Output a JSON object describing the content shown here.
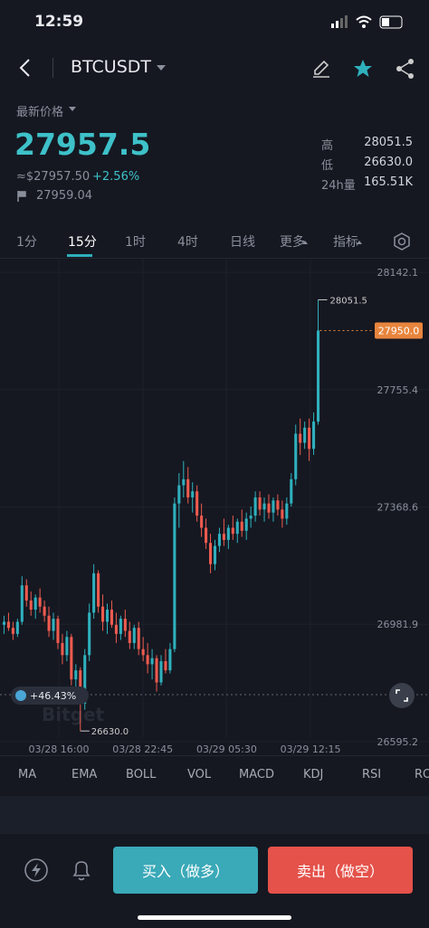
{
  "status": {
    "time": "12:59"
  },
  "header": {
    "symbol": "BTCUSDT"
  },
  "price": {
    "label": "最新价格",
    "last": "27957.5",
    "usd": "≈$27957.50",
    "change": "+2.56%",
    "mark": "27959.04"
  },
  "stats": [
    {
      "label": "高",
      "value": "28051.5"
    },
    {
      "label": "低",
      "value": "26630.0"
    },
    {
      "label": "24h量",
      "value": "165.51K"
    }
  ],
  "tabs": [
    "1分",
    "15分",
    "1时",
    "4时",
    "日线",
    "更多",
    "指标"
  ],
  "chart": {
    "type": "candlestick",
    "up_color": "#2fb0bd",
    "down_color": "#ee5b4f",
    "ylim": [
      26550,
      28190
    ],
    "yticks": [
      28142.1,
      27755.4,
      27368.6,
      26981.9,
      26595.2
    ],
    "current": {
      "value": 27950,
      "label": "27950.0"
    },
    "max_label": "28051.5",
    "min_label": "26630.0",
    "badge": "+46.43%",
    "watermark": "Bitget",
    "xlabels": [
      "03/28 16:00",
      "03/28 22:45",
      "03/29 05:30",
      "03/29 12:15"
    ],
    "candles": [
      [
        26980,
        27010,
        26950,
        26990
      ],
      [
        26990,
        27020,
        26960,
        26970
      ],
      [
        26970,
        26990,
        26930,
        26950
      ],
      [
        26950,
        27000,
        26940,
        26990
      ],
      [
        26990,
        27140,
        26980,
        27110
      ],
      [
        27110,
        27130,
        27040,
        27060
      ],
      [
        27060,
        27090,
        27010,
        27030
      ],
      [
        27030,
        27080,
        27000,
        27070
      ],
      [
        27070,
        27100,
        27020,
        27040
      ],
      [
        27040,
        27060,
        26990,
        27010
      ],
      [
        27010,
        27040,
        26940,
        26960
      ],
      [
        26960,
        27020,
        26930,
        27000
      ],
      [
        27000,
        27010,
        26900,
        26920
      ],
      [
        26920,
        26950,
        26850,
        26880
      ],
      [
        26880,
        26960,
        26860,
        26940
      ],
      [
        26940,
        26950,
        26780,
        26800
      ],
      [
        26800,
        26850,
        26760,
        26830
      ],
      [
        26830,
        26840,
        26630,
        26720
      ],
      [
        26720,
        26900,
        26700,
        26880
      ],
      [
        26880,
        27050,
        26860,
        27020
      ],
      [
        27020,
        27180,
        27000,
        27150
      ],
      [
        27150,
        27160,
        27020,
        27040
      ],
      [
        27040,
        27080,
        26960,
        26990
      ],
      [
        26990,
        27050,
        26950,
        27030
      ],
      [
        27030,
        27060,
        26970,
        26980
      ],
      [
        26980,
        27020,
        26920,
        26950
      ],
      [
        26950,
        27010,
        26930,
        27000
      ],
      [
        27000,
        27030,
        26940,
        26960
      ],
      [
        26960,
        26990,
        26900,
        26920
      ],
      [
        26920,
        26980,
        26900,
        26970
      ],
      [
        26970,
        26990,
        26880,
        26900
      ],
      [
        26900,
        26940,
        26860,
        26880
      ],
      [
        26880,
        26920,
        26820,
        26850
      ],
      [
        26850,
        26900,
        26800,
        26870
      ],
      [
        26870,
        26880,
        26760,
        26790
      ],
      [
        26790,
        26880,
        26780,
        26860
      ],
      [
        26860,
        26900,
        26820,
        26830
      ],
      [
        26830,
        26920,
        26820,
        26900
      ],
      [
        26900,
        27400,
        26890,
        27380
      ],
      [
        27380,
        27480,
        27300,
        27440
      ],
      [
        27440,
        27520,
        27400,
        27460
      ],
      [
        27460,
        27500,
        27380,
        27400
      ],
      [
        27400,
        27450,
        27350,
        27420
      ],
      [
        27420,
        27440,
        27320,
        27340
      ],
      [
        27340,
        27380,
        27270,
        27300
      ],
      [
        27300,
        27330,
        27230,
        27250
      ],
      [
        27250,
        27280,
        27150,
        27180
      ],
      [
        27180,
        27260,
        27160,
        27240
      ],
      [
        27240,
        27300,
        27220,
        27280
      ],
      [
        27280,
        27330,
        27240,
        27260
      ],
      [
        27260,
        27310,
        27230,
        27300
      ],
      [
        27300,
        27340,
        27260,
        27280
      ],
      [
        27280,
        27330,
        27250,
        27320
      ],
      [
        27320,
        27360,
        27270,
        27290
      ],
      [
        27290,
        27350,
        27260,
        27330
      ],
      [
        27330,
        27370,
        27300,
        27340
      ],
      [
        27340,
        27420,
        27320,
        27400
      ],
      [
        27400,
        27420,
        27340,
        27360
      ],
      [
        27360,
        27400,
        27320,
        27380
      ],
      [
        27380,
        27410,
        27330,
        27350
      ],
      [
        27350,
        27400,
        27320,
        27390
      ],
      [
        27390,
        27410,
        27340,
        27360
      ],
      [
        27360,
        27390,
        27300,
        27330
      ],
      [
        27330,
        27400,
        27310,
        27380
      ],
      [
        27380,
        27480,
        27370,
        27460
      ],
      [
        27460,
        27640,
        27440,
        27610
      ],
      [
        27610,
        27660,
        27540,
        27580
      ],
      [
        27580,
        27650,
        27560,
        27630
      ],
      [
        27630,
        27660,
        27520,
        27560
      ],
      [
        27560,
        27680,
        27540,
        27650
      ],
      [
        27650,
        28051.5,
        27640,
        27950
      ]
    ]
  },
  "indicators": [
    "MA",
    "EMA",
    "BOLL",
    "VOL",
    "MACD",
    "KDJ",
    "RSI",
    "ROC"
  ],
  "actions": {
    "buy": "买入（做多）",
    "sell": "卖出（做空）"
  }
}
